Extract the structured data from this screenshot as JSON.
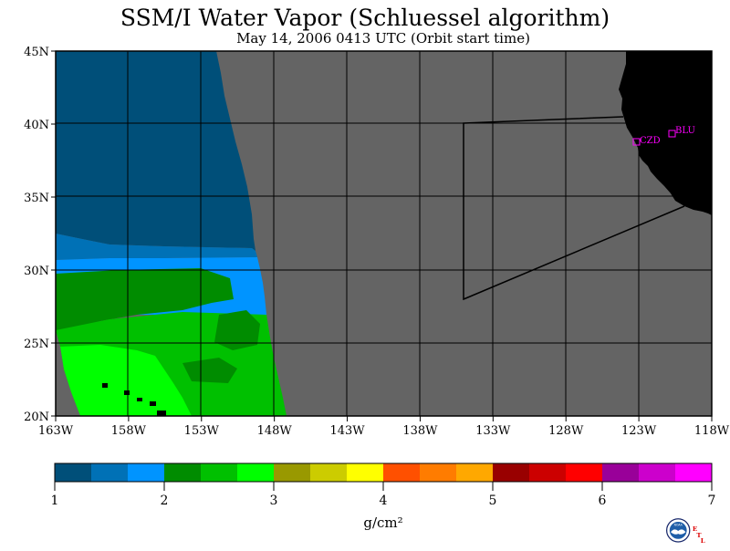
{
  "title": "SSM/I Water Vapor (Schluessel algorithm)",
  "subtitle": "May 14, 2006  0413 UTC  (Orbit start time)",
  "map": {
    "lat_labels": [
      "45N",
      "40N",
      "35N",
      "30N",
      "25N",
      "20N"
    ],
    "lon_labels": [
      "163W",
      "158W",
      "153W",
      "148W",
      "143W",
      "138W",
      "133W",
      "128W",
      "123W",
      "118W"
    ],
    "sites": [
      {
        "code": "CZD",
        "lat": 38.6,
        "lon": -123.2
      },
      {
        "code": "BLU",
        "lat": 39.2,
        "lon": -120.8
      }
    ],
    "no_data_color": "#646464",
    "land_color": "#000000"
  },
  "colorbar": {
    "unit": "g/cm²",
    "tick_labels": [
      "1",
      "2",
      "3",
      "4",
      "5",
      "6",
      "7"
    ],
    "colors": [
      "#004f79",
      "#0071b6",
      "#0094ff",
      "#008c00",
      "#00c000",
      "#00ff00",
      "#999900",
      "#cccc00",
      "#ffff00",
      "#ff5000",
      "#ff7c00",
      "#ffa800",
      "#990000",
      "#cc0000",
      "#ff0000",
      "#990099",
      "#cc00cc",
      "#ff00ff"
    ]
  },
  "logo": {
    "text": "NOAA",
    "etl": [
      "E",
      "T",
      "L"
    ]
  }
}
